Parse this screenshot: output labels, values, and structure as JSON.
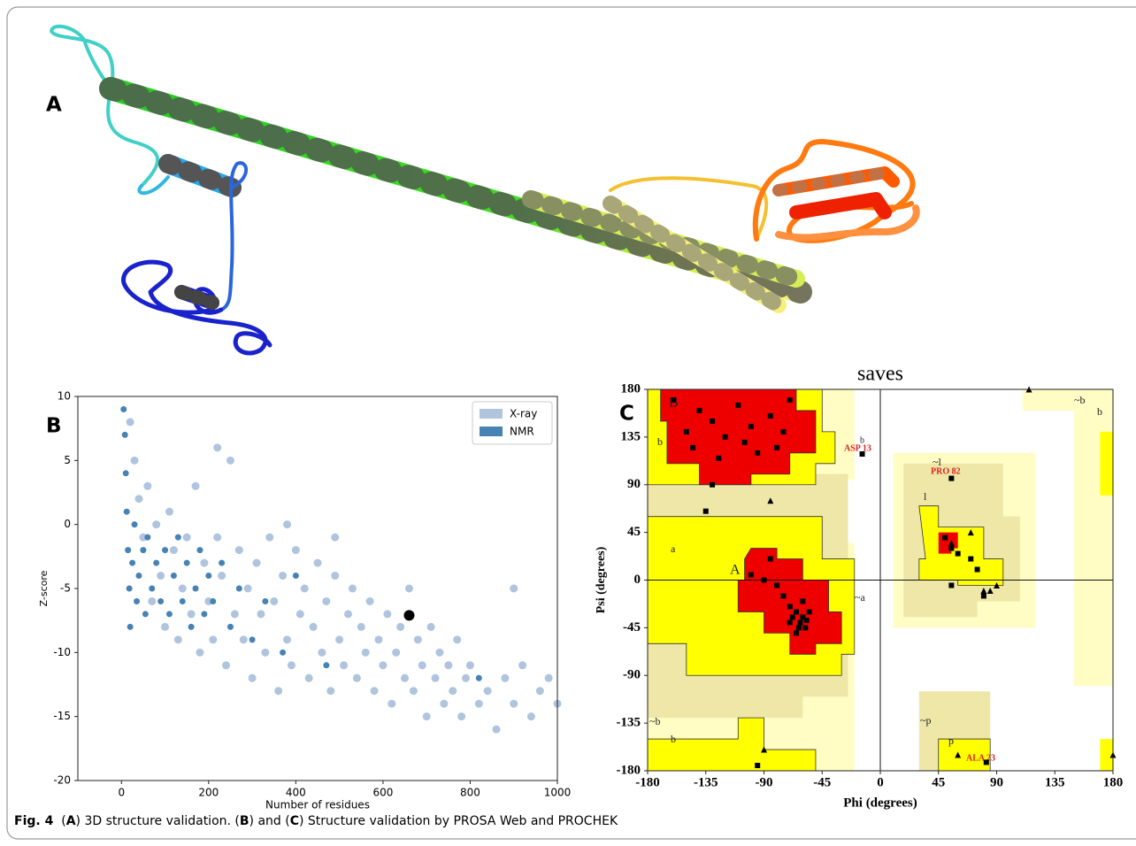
{
  "panel_labels": [
    "A",
    "B",
    "C"
  ],
  "chart_data": [
    {
      "type": "scatter",
      "xlabel": "Number of residues",
      "ylabel": "Z-score",
      "xlim": [
        -100,
        1000
      ],
      "ylim": [
        -20,
        10
      ],
      "xticks": [
        0,
        200,
        400,
        600,
        800,
        1000
      ],
      "yticks": [
        -20,
        -15,
        -10,
        -5,
        0,
        5,
        10
      ],
      "legend": "upper right",
      "series": [
        {
          "name": "X-ray",
          "color": "#b0c4de",
          "marker": "circle",
          "marker_size": 4.5,
          "x": [
            20,
            30,
            40,
            50,
            60,
            70,
            80,
            90,
            100,
            110,
            120,
            130,
            140,
            150,
            160,
            170,
            180,
            190,
            200,
            210,
            220,
            230,
            240,
            250,
            260,
            270,
            280,
            290,
            300,
            310,
            320,
            330,
            340,
            350,
            360,
            370,
            380,
            390,
            400,
            410,
            420,
            430,
            440,
            450,
            460,
            470,
            480,
            490,
            500,
            510,
            520,
            530,
            540,
            550,
            560,
            570,
            580,
            590,
            600,
            610,
            620,
            630,
            640,
            650,
            660,
            670,
            680,
            690,
            700,
            710,
            720,
            730,
            740,
            750,
            760,
            770,
            780,
            790,
            800,
            820,
            840,
            860,
            880,
            900,
            920,
            940,
            960,
            980,
            1000,
            900,
            490,
            380,
            220
          ],
          "y": [
            8,
            5,
            2,
            -1,
            3,
            -6,
            0,
            -4,
            -8,
            1,
            -2,
            -9,
            -5,
            -1,
            -7,
            3,
            -10,
            -3,
            -6,
            -9,
            -1,
            -4,
            -11,
            5,
            -7,
            -2,
            -9,
            -5,
            -12,
            -3,
            -7,
            -10,
            -1,
            -6,
            -13,
            -4,
            -9,
            -11,
            -2,
            -7,
            -5,
            -12,
            -8,
            -3,
            -10,
            -6,
            -13,
            -4,
            -9,
            -11,
            -7,
            -5,
            -12,
            -8,
            -10,
            -6,
            -13,
            -9,
            -11,
            -7,
            -14,
            -10,
            -8,
            -12,
            -5,
            -13,
            -9,
            -11,
            -15,
            -8,
            -12,
            -10,
            -14,
            -11,
            -13,
            -9,
            -15,
            -12,
            -11,
            -14,
            -13,
            -16,
            -12,
            -14,
            -11,
            -15,
            -13,
            -12,
            -14,
            -5,
            -1,
            0,
            6
          ]
        },
        {
          "name": "NMR",
          "color": "#4682b4",
          "marker": "circle",
          "marker_size": 3.5,
          "x": [
            5,
            8,
            10,
            12,
            15,
            18,
            20,
            25,
            30,
            35,
            40,
            50,
            55,
            60,
            70,
            80,
            90,
            100,
            110,
            120,
            130,
            140,
            150,
            160,
            170,
            180,
            190,
            200,
            210,
            230,
            250,
            270,
            300,
            330,
            370,
            400,
            470,
            820
          ],
          "y": [
            9,
            7,
            4,
            1,
            -2,
            -5,
            -8,
            -3,
            0,
            -6,
            -4,
            -2,
            -7,
            -1,
            -5,
            -3,
            -6,
            -2,
            -7,
            -4,
            -1,
            -6,
            -3,
            -8,
            -5,
            -2,
            -7,
            -4,
            -6,
            -3,
            -8,
            -5,
            -9,
            -6,
            -10,
            -4,
            -11,
            -12
          ]
        },
        {
          "color": "#000000",
          "marker": "circle",
          "marker_size": 6,
          "x": [
            660
          ],
          "y": [
            -7.1
          ]
        }
      ]
    },
    {
      "type": "scatter",
      "title": "saves",
      "xlabel": "Phi (degrees)",
      "ylabel": "Psi (degrees)",
      "xlim": [
        -180,
        180
      ],
      "ylim": [
        -180,
        180
      ],
      "xticks": [
        -180,
        -135,
        -90,
        -45,
        0,
        45,
        90,
        135,
        180
      ],
      "yticks": [
        -180,
        -135,
        -90,
        -45,
        0,
        45,
        90,
        135,
        180
      ],
      "zero_lines": true,
      "region_labels": [
        "B",
        "b",
        "b",
        "a",
        "A",
        "~a",
        "~b",
        "b",
        "~l",
        "l",
        "~p",
        "p",
        "~b",
        "b"
      ],
      "annotations": [
        "ASP 13",
        "PRO 82",
        "ALA 23"
      ],
      "series": [
        {
          "color": "#000000",
          "marker": "square",
          "marker_size": 3,
          "x": [
            -160,
            -150,
            -140,
            -130,
            -120,
            -110,
            -100,
            -95,
            -85,
            -75,
            -70,
            -145,
            -125,
            -105,
            -80,
            -130,
            -135,
            -14,
            -100,
            -90,
            -80,
            -75,
            -70,
            -65,
            -62,
            -60,
            -58,
            -65,
            -55,
            -60,
            -70,
            -68,
            -63,
            -57,
            55,
            50,
            55,
            60,
            70,
            75,
            55,
            80,
            82,
            -95,
            -85
          ],
          "y": [
            170,
            140,
            160,
            150,
            135,
            165,
            145,
            120,
            155,
            140,
            170,
            125,
            115,
            130,
            125,
            90,
            65,
            119,
            5,
            0,
            -5,
            -15,
            -25,
            -30,
            -40,
            -35,
            -45,
            -50,
            -30,
            -20,
            -40,
            -35,
            -45,
            -38,
            96,
            40,
            30,
            25,
            20,
            10,
            -5,
            -15,
            -172,
            -175,
            20
          ]
        },
        {
          "color": "#000000",
          "marker": "triangle",
          "marker_size": 3.5,
          "x": [
            115,
            -85,
            55,
            70,
            90,
            85,
            80,
            -90,
            180,
            60
          ],
          "y": [
            180,
            75,
            35,
            45,
            -5,
            -10,
            -10,
            -160,
            -165,
            -165
          ]
        }
      ]
    }
  ],
  "caption": [
    {
      "text": "Fig. 4",
      "bold": true
    },
    {
      "text": "  ("
    },
    {
      "text": "A",
      "bold": true
    },
    {
      "text": ") 3D structure validation. ("
    },
    {
      "text": "B",
      "bold": true
    },
    {
      "text": ") and ("
    },
    {
      "text": "C",
      "bold": true
    },
    {
      "text": ") Structure validation by PROSA Web and PROCHEK"
    }
  ]
}
